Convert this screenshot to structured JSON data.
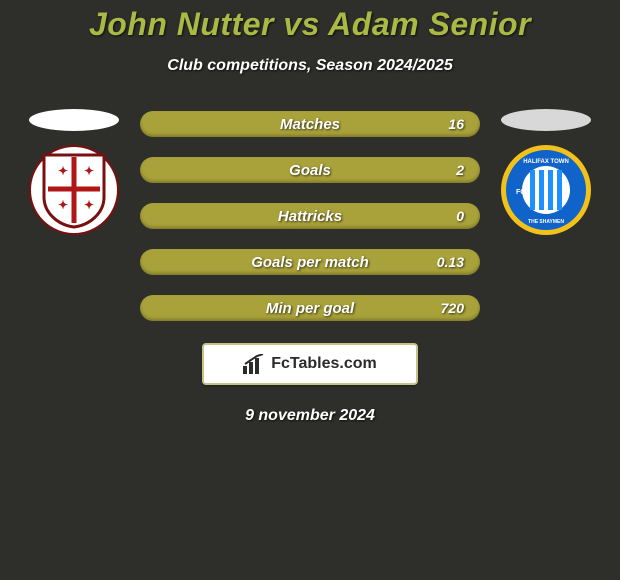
{
  "background_color": "#2e2e2a",
  "title": {
    "text": "John Nutter vs Adam Senior",
    "color": "#a9b944"
  },
  "subtitle": "Club competitions, Season 2024/2025",
  "left": {
    "pill_color": "#ffffff",
    "crest": {
      "ring_color": "#7a0f0f",
      "shield_bg": "#ffffff",
      "cross_color": "#b01616"
    }
  },
  "right": {
    "pill_color": "#d8d8d8",
    "crest": {
      "outer_color": "#0f63c9",
      "ring_accent": "#f2c21a",
      "inner_bg": "#ffffff",
      "stripe_color": "#1e90ff"
    }
  },
  "bars": {
    "fill_color": "#a9a23a",
    "items": [
      {
        "label": "Matches",
        "right_value": "16"
      },
      {
        "label": "Goals",
        "right_value": "2"
      },
      {
        "label": "Hattricks",
        "right_value": "0"
      },
      {
        "label": "Goals per match",
        "right_value": "0.13"
      },
      {
        "label": "Min per goal",
        "right_value": "720"
      }
    ]
  },
  "brand": {
    "bg": "#ffffff",
    "border": "#c9c18a",
    "text": "FcTables.com",
    "icon_color": "#2b2b2b"
  },
  "date": "9 november 2024"
}
